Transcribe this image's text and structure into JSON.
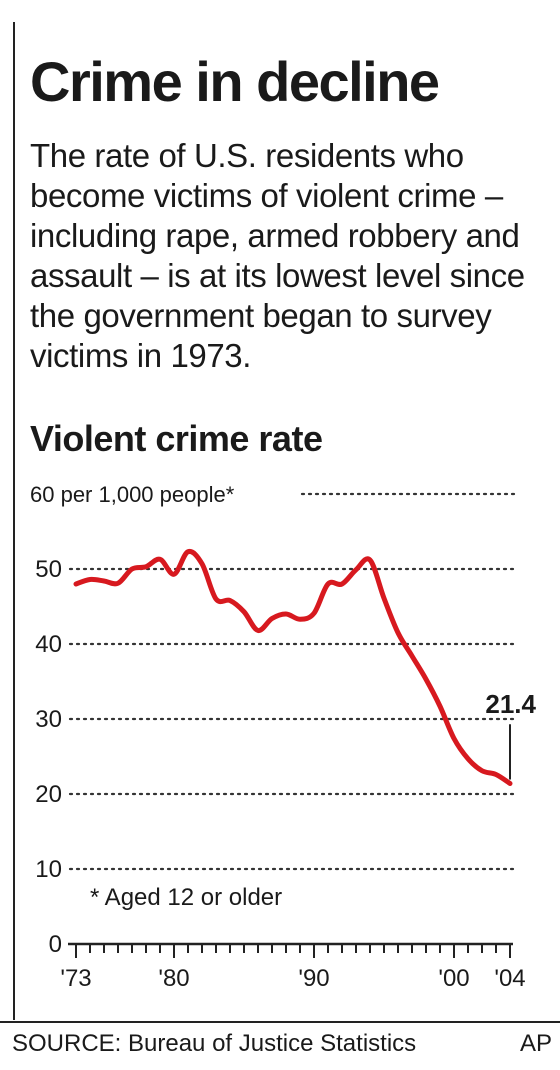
{
  "header": {
    "title": "Crime in decline",
    "intro": "The rate of U.S. residents who become victims of violent crime – including rape, armed robbery and assault – is at its lowest level since the government began to survey victims in 1973."
  },
  "chart_data": {
    "type": "line",
    "title": "Violent crime rate",
    "ylabel": "",
    "xlabel": "",
    "y_unit_label": "60 per 1,000 people*",
    "ylim": [
      0,
      60
    ],
    "xlim": [
      1973,
      2004
    ],
    "grid": true,
    "y_ticks": [
      {
        "value": 0,
        "label": "0"
      },
      {
        "value": 10,
        "label": "10"
      },
      {
        "value": 20,
        "label": "20"
      },
      {
        "value": 30,
        "label": "30"
      },
      {
        "value": 40,
        "label": "40"
      },
      {
        "value": 50,
        "label": "50"
      },
      {
        "value": 60,
        "label": "60"
      }
    ],
    "x_ticks": [
      {
        "value": 1973,
        "label": "'73"
      },
      {
        "value": 1980,
        "label": "'80"
      },
      {
        "value": 1990,
        "label": "'90"
      },
      {
        "value": 2000,
        "label": "'00"
      },
      {
        "value": 2004,
        "label": "'04"
      }
    ],
    "series": [
      {
        "color": "#d7191f",
        "x": [
          1973,
          1974,
          1975,
          1976,
          1977,
          1978,
          1979,
          1980,
          1981,
          1982,
          1983,
          1984,
          1985,
          1986,
          1987,
          1988,
          1989,
          1990,
          1991,
          1992,
          1993,
          1994,
          1995,
          1996,
          1997,
          1998,
          1999,
          2000,
          2001,
          2002,
          2003,
          2004
        ],
        "values": [
          48.0,
          48.6,
          48.4,
          48.1,
          50.0,
          50.3,
          51.3,
          49.3,
          52.3,
          50.7,
          46.0,
          45.8,
          44.3,
          41.8,
          43.4,
          44.0,
          43.3,
          44.1,
          48.0,
          48.0,
          49.9,
          51.2,
          46.1,
          41.5,
          38.4,
          35.3,
          31.7,
          27.4,
          24.7,
          23.1,
          22.6,
          21.4
        ]
      }
    ],
    "annotations": [
      {
        "text": "21.4",
        "x": 2004,
        "y": 21.4
      },
      {
        "text": "* Aged 12 or older"
      }
    ]
  },
  "footer": {
    "source": "SOURCE: Bureau of Justice Statistics",
    "credit": "AP"
  }
}
